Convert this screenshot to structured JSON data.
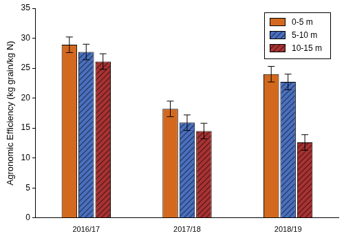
{
  "chart_data": {
    "type": "bar",
    "y_label": "Agronomic Efficiency (kg grain/kg N)",
    "categories": [
      "2016/17",
      "2017/18",
      "2018/19"
    ],
    "series": [
      {
        "name": "0-5 m",
        "color": "#d2691e",
        "values": [
          28.9,
          18.2,
          24.0
        ],
        "errors": [
          1.3,
          1.3,
          1.3
        ]
      },
      {
        "name": "5-10 m",
        "color": "#4a6fbf",
        "values": [
          27.7,
          15.9,
          22.7
        ],
        "errors": [
          1.3,
          1.3,
          1.3
        ]
      },
      {
        "name": "10-15 m",
        "color": "#a83232",
        "values": [
          26.1,
          14.5,
          12.6
        ],
        "errors": [
          1.3,
          1.3,
          1.3
        ]
      }
    ],
    "ylim": [
      0,
      35
    ],
    "yticks": [
      0,
      5,
      10,
      15,
      20,
      25,
      30,
      35
    ],
    "grid": false,
    "legend": "upper right"
  }
}
